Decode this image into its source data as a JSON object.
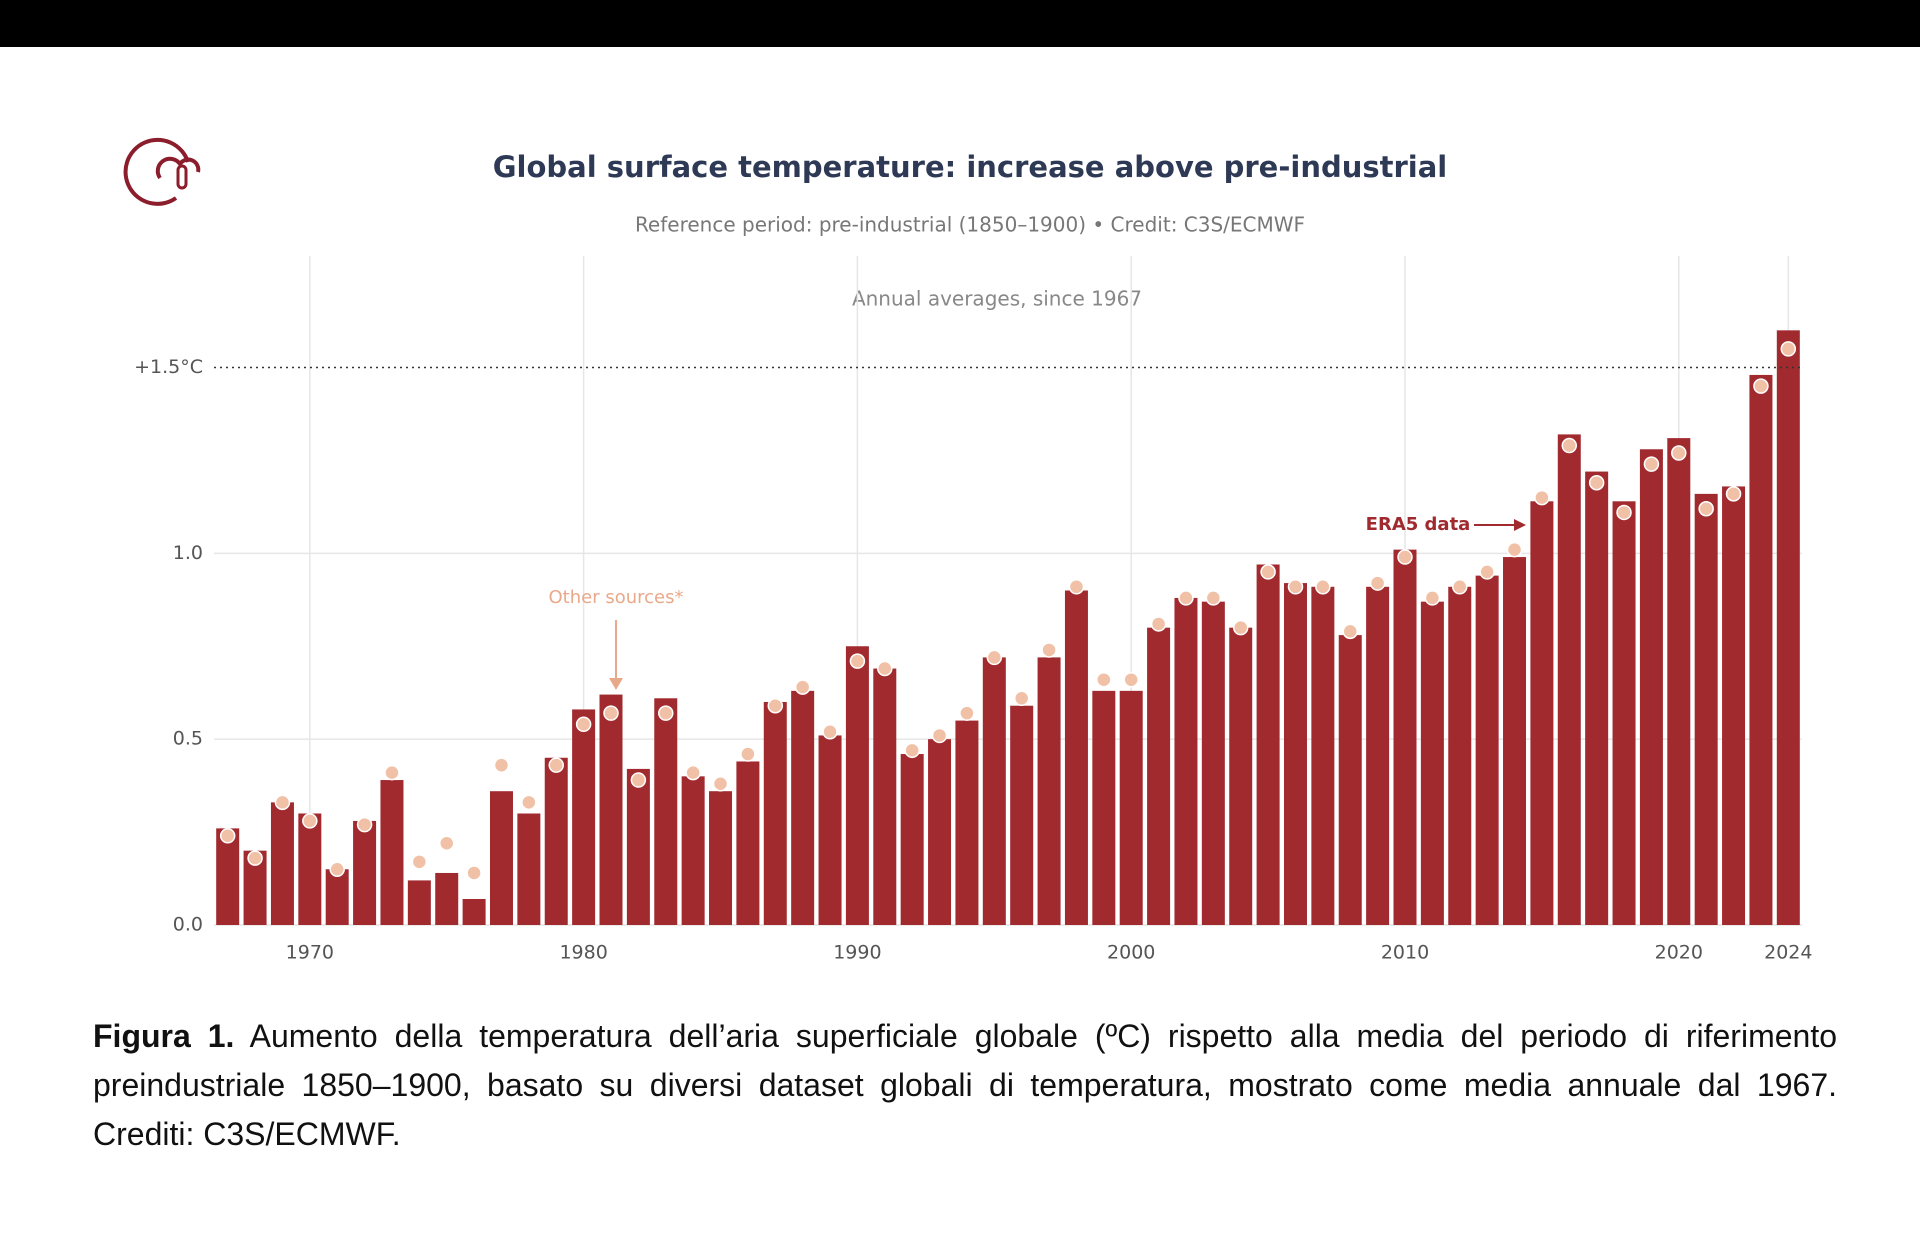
{
  "chart_data": {
    "type": "bar",
    "title": "Global surface temperature: increase above pre-industrial",
    "subtitle": "Reference period: pre-industrial (1850–1900) • Credit: C3S/ECMWF",
    "annotation": "Annual averages, since 1967",
    "x": [
      1967,
      1968,
      1969,
      1970,
      1971,
      1972,
      1973,
      1974,
      1975,
      1976,
      1977,
      1978,
      1979,
      1980,
      1981,
      1982,
      1983,
      1984,
      1985,
      1986,
      1987,
      1988,
      1989,
      1990,
      1991,
      1992,
      1993,
      1994,
      1995,
      1996,
      1997,
      1998,
      1999,
      2000,
      2001,
      2002,
      2003,
      2004,
      2005,
      2006,
      2007,
      2008,
      2009,
      2010,
      2011,
      2012,
      2013,
      2014,
      2015,
      2016,
      2017,
      2018,
      2019,
      2020,
      2021,
      2022,
      2023,
      2024
    ],
    "series": [
      {
        "name": "ERA5 data",
        "type": "bar",
        "color": "#a12a2f",
        "values": [
          0.26,
          0.2,
          0.33,
          0.3,
          0.15,
          0.28,
          0.39,
          0.12,
          0.14,
          0.07,
          0.36,
          0.3,
          0.45,
          0.58,
          0.62,
          0.42,
          0.61,
          0.4,
          0.36,
          0.44,
          0.6,
          0.63,
          0.51,
          0.75,
          0.69,
          0.46,
          0.5,
          0.55,
          0.72,
          0.59,
          0.72,
          0.9,
          0.63,
          0.63,
          0.8,
          0.88,
          0.87,
          0.8,
          0.97,
          0.92,
          0.91,
          0.78,
          0.91,
          1.01,
          0.87,
          0.91,
          0.94,
          0.99,
          1.14,
          1.32,
          1.22,
          1.14,
          1.28,
          1.31,
          1.16,
          1.18,
          1.48,
          1.6
        ]
      },
      {
        "name": "Other sources*",
        "type": "scatter",
        "color": "#f0c1a6",
        "values": [
          0.24,
          0.18,
          0.33,
          0.28,
          0.15,
          0.27,
          0.41,
          0.17,
          0.22,
          0.14,
          0.43,
          0.33,
          0.43,
          0.54,
          0.57,
          0.39,
          0.57,
          0.41,
          0.38,
          0.46,
          0.59,
          0.64,
          0.52,
          0.71,
          0.69,
          0.47,
          0.51,
          0.57,
          0.72,
          0.61,
          0.74,
          0.91,
          0.66,
          0.66,
          0.81,
          0.88,
          0.88,
          0.8,
          0.95,
          0.91,
          0.91,
          0.79,
          0.92,
          0.99,
          0.88,
          0.91,
          0.95,
          1.01,
          1.15,
          1.29,
          1.19,
          1.11,
          1.24,
          1.27,
          1.12,
          1.16,
          1.45,
          1.55
        ]
      }
    ],
    "xlim": [
      1966.5,
      2024.5
    ],
    "xticks": [
      1970,
      1980,
      1990,
      2000,
      2010,
      2020,
      2024
    ],
    "ylim": [
      0,
      1.8
    ],
    "yticks": [
      {
        "value": 0,
        "label": "0.0"
      },
      0.5,
      {
        "value": 1,
        "label": "1.0"
      }
    ],
    "threshold": {
      "value": 1.5,
      "label": "+1.5°C"
    },
    "grid": true
  },
  "caption": {
    "label": "Figura 1.",
    "text": "Aumento della temperatura dell’aria superficiale globale (ºC) rispetto alla media del periodo di riferimento preindustriale 1850–1900, basato su diversi dataset globali di temperatura, mostrato come media annuale dal 1967. Crediti: C3S/ECMWF."
  }
}
